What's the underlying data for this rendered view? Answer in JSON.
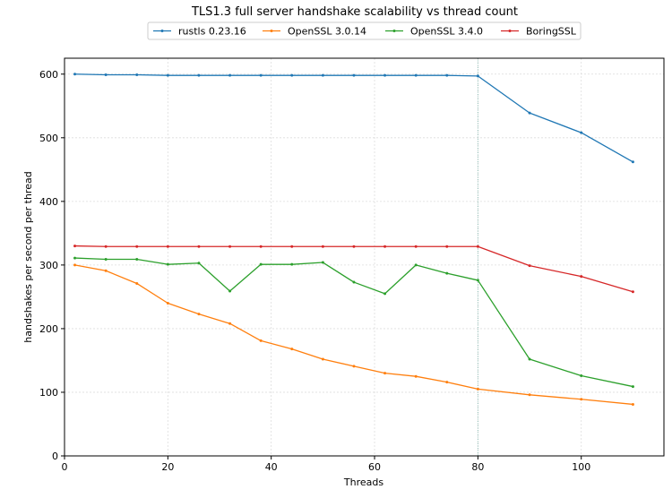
{
  "chart_data": {
    "type": "line",
    "title": "TLS1.3 full server handshake scalability vs thread count",
    "xlabel": "Threads",
    "ylabel": "handshakes per second per thread",
    "xlim": [
      0,
      116
    ],
    "ylim": [
      0,
      625
    ],
    "xticks": [
      0,
      20,
      40,
      60,
      80,
      100
    ],
    "yticks": [
      0,
      100,
      200,
      300,
      400,
      500,
      600
    ],
    "grid": true,
    "legend_position": "top-center",
    "reference_line_x": 80,
    "x": [
      2,
      8,
      14,
      20,
      26,
      32,
      38,
      44,
      50,
      56,
      62,
      68,
      74,
      80,
      90,
      100,
      110
    ],
    "series": [
      {
        "name": "rustls 0.23.16",
        "color": "#1f77b4",
        "values": [
          600,
          599,
          599,
          598,
          598,
          598,
          598,
          598,
          598,
          598,
          598,
          598,
          598,
          597,
          539,
          508,
          462
        ]
      },
      {
        "name": "OpenSSL 3.0.14",
        "color": "#ff7f0e",
        "values": [
          300,
          291,
          271,
          240,
          223,
          208,
          181,
          168,
          152,
          141,
          130,
          125,
          116,
          105,
          96,
          89,
          81
        ]
      },
      {
        "name": "OpenSSL 3.4.0",
        "color": "#2ca02c",
        "values": [
          311,
          309,
          309,
          301,
          303,
          259,
          301,
          301,
          304,
          273,
          255,
          300,
          287,
          276,
          152,
          126,
          109
        ]
      },
      {
        "name": "BoringSSL",
        "color": "#d62728",
        "values": [
          330,
          329,
          329,
          329,
          329,
          329,
          329,
          329,
          329,
          329,
          329,
          329,
          329,
          329,
          299,
          282,
          258
        ]
      }
    ]
  }
}
